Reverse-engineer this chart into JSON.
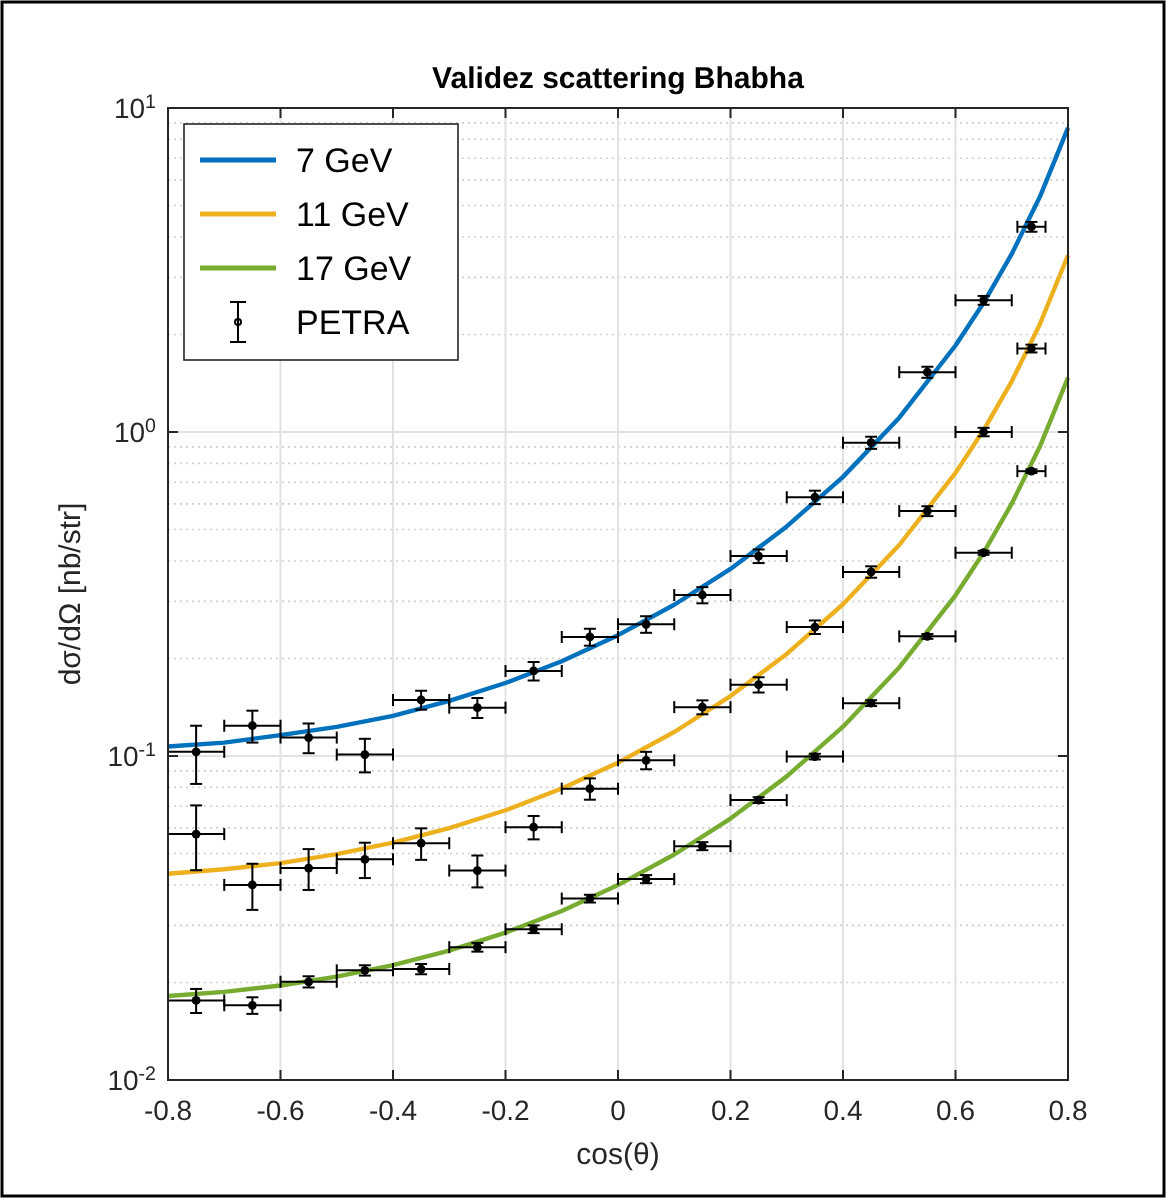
{
  "chart_data": {
    "type": "line",
    "title": "Validez scattering Bhabha",
    "xlabel": "cos(θ)",
    "ylabel": "dσ/dΩ  [nb/str]",
    "xlim": [
      -0.8,
      0.8
    ],
    "xticks": [
      -0.8,
      -0.6,
      -0.4,
      -0.2,
      0,
      0.2,
      0.4,
      0.6,
      0.8
    ],
    "ylim": [
      0.01,
      10
    ],
    "yticks": [
      {
        "value": 0.01,
        "label": "10$^{-2}$"
      },
      {
        "value": 0.1,
        "label": "10$^{-1}$"
      },
      {
        "value": 1,
        "label": "10$^{0}$"
      },
      {
        "value": 10,
        "label": "10$^{1}$"
      }
    ],
    "log": "y",
    "grid": true,
    "legend": "top left",
    "series": [
      {
        "name": "7 GeV",
        "color": "#0072bd",
        "x": [
          -0.8,
          -0.7,
          -0.6,
          -0.5,
          -0.4,
          -0.3,
          -0.2,
          -0.1,
          0,
          0.1,
          0.2,
          0.3,
          0.4,
          0.5,
          0.6,
          0.65,
          0.7,
          0.75,
          0.8
        ],
        "values": [
          0.107,
          0.11,
          0.116,
          0.123,
          0.133,
          0.148,
          0.168,
          0.196,
          0.236,
          0.293,
          0.378,
          0.511,
          0.727,
          1.107,
          1.849,
          2.505,
          3.546,
          5.32,
          8.68
        ]
      },
      {
        "name": "11 GeV",
        "color": "#edb120",
        "x": [
          -0.8,
          -0.7,
          -0.6,
          -0.5,
          -0.4,
          -0.3,
          -0.2,
          -0.1,
          0,
          0.1,
          0.2,
          0.3,
          0.4,
          0.5,
          0.6,
          0.65,
          0.7,
          0.75,
          0.8
        ],
        "values": [
          0.0433,
          0.0447,
          0.0467,
          0.0498,
          0.054,
          0.0599,
          0.068,
          0.0794,
          0.0954,
          0.1186,
          0.1531,
          0.2066,
          0.294,
          0.448,
          0.748,
          1.014,
          1.434,
          2.152,
          3.511
        ]
      },
      {
        "name": "17 GeV",
        "color": "#77ac30",
        "x": [
          -0.8,
          -0.7,
          -0.6,
          -0.5,
          -0.4,
          -0.3,
          -0.2,
          -0.1,
          0,
          0.1,
          0.2,
          0.3,
          0.4,
          0.5,
          0.6,
          0.65,
          0.7,
          0.75,
          0.8
        ],
        "values": [
          0.01816,
          0.01871,
          0.01958,
          0.02084,
          0.02262,
          0.02509,
          0.0285,
          0.03325,
          0.03996,
          0.04966,
          0.06411,
          0.08652,
          0.1232,
          0.1876,
          0.3133,
          0.4246,
          0.6009,
          0.9016,
          1.471
        ]
      },
      {
        "name": "PETRA",
        "type": "scatter",
        "color": "#000000",
        "marker": "circle",
        "x": [
          -0.75,
          -0.65,
          -0.55,
          -0.45,
          -0.35,
          -0.25,
          -0.15,
          -0.05,
          0.05,
          0.15,
          0.25,
          0.35,
          0.45,
          0.55,
          0.65,
          0.735,
          -0.75,
          -0.65,
          -0.55,
          -0.45,
          -0.35,
          -0.25,
          -0.15,
          -0.05,
          0.05,
          0.15,
          0.25,
          0.35,
          0.45,
          0.55,
          0.65,
          0.735,
          -0.75,
          -0.65,
          -0.55,
          -0.45,
          -0.35,
          -0.25,
          -0.15,
          -0.05,
          0.05,
          0.15,
          0.25,
          0.35,
          0.45,
          0.55,
          0.65,
          0.735
        ],
        "values": [
          0.103,
          0.124,
          0.114,
          0.101,
          0.149,
          0.141,
          0.183,
          0.233,
          0.255,
          0.314,
          0.414,
          0.629,
          0.927,
          1.53,
          2.55,
          4.3,
          0.0574,
          0.04,
          0.0451,
          0.048,
          0.0538,
          0.0443,
          0.0603,
          0.0793,
          0.097,
          0.1415,
          0.166,
          0.25,
          0.37,
          0.57,
          1.0,
          1.81,
          0.0176,
          0.017,
          0.0201,
          0.0218,
          0.022,
          0.0257,
          0.0292,
          0.0363,
          0.0417,
          0.0527,
          0.0731,
          0.0996,
          0.1456,
          0.234,
          0.424,
          0.757
        ],
        "errors": [
          0.021,
          0.014,
          0.012,
          0.012,
          0.01,
          0.01,
          0.012,
          0.014,
          0.015,
          0.018,
          0.02,
          0.03,
          0.04,
          0.06,
          0.08,
          0.15,
          0.013,
          0.0065,
          0.0065,
          0.006,
          0.006,
          0.005,
          0.005,
          0.006,
          0.006,
          0.007,
          0.009,
          0.012,
          0.015,
          0.02,
          0.03,
          0.05,
          0.0015,
          0.001,
          0.0008,
          0.0008,
          0.0008,
          0.0008,
          0.0008,
          0.001,
          0.0012,
          0.0015,
          0.0015,
          0.002,
          0.003,
          0.004,
          0.006,
          0.01
        ],
        "xerrors": [
          0.05,
          0.05,
          0.05,
          0.05,
          0.05,
          0.05,
          0.05,
          0.05,
          0.05,
          0.05,
          0.05,
          0.05,
          0.05,
          0.05,
          0.05,
          0.025,
          0.05,
          0.05,
          0.05,
          0.05,
          0.05,
          0.05,
          0.05,
          0.05,
          0.05,
          0.05,
          0.05,
          0.05,
          0.05,
          0.05,
          0.05,
          0.025,
          0.05,
          0.05,
          0.05,
          0.05,
          0.05,
          0.05,
          0.05,
          0.05,
          0.05,
          0.05,
          0.05,
          0.05,
          0.05,
          0.05,
          0.05,
          0.025
        ]
      }
    ]
  }
}
